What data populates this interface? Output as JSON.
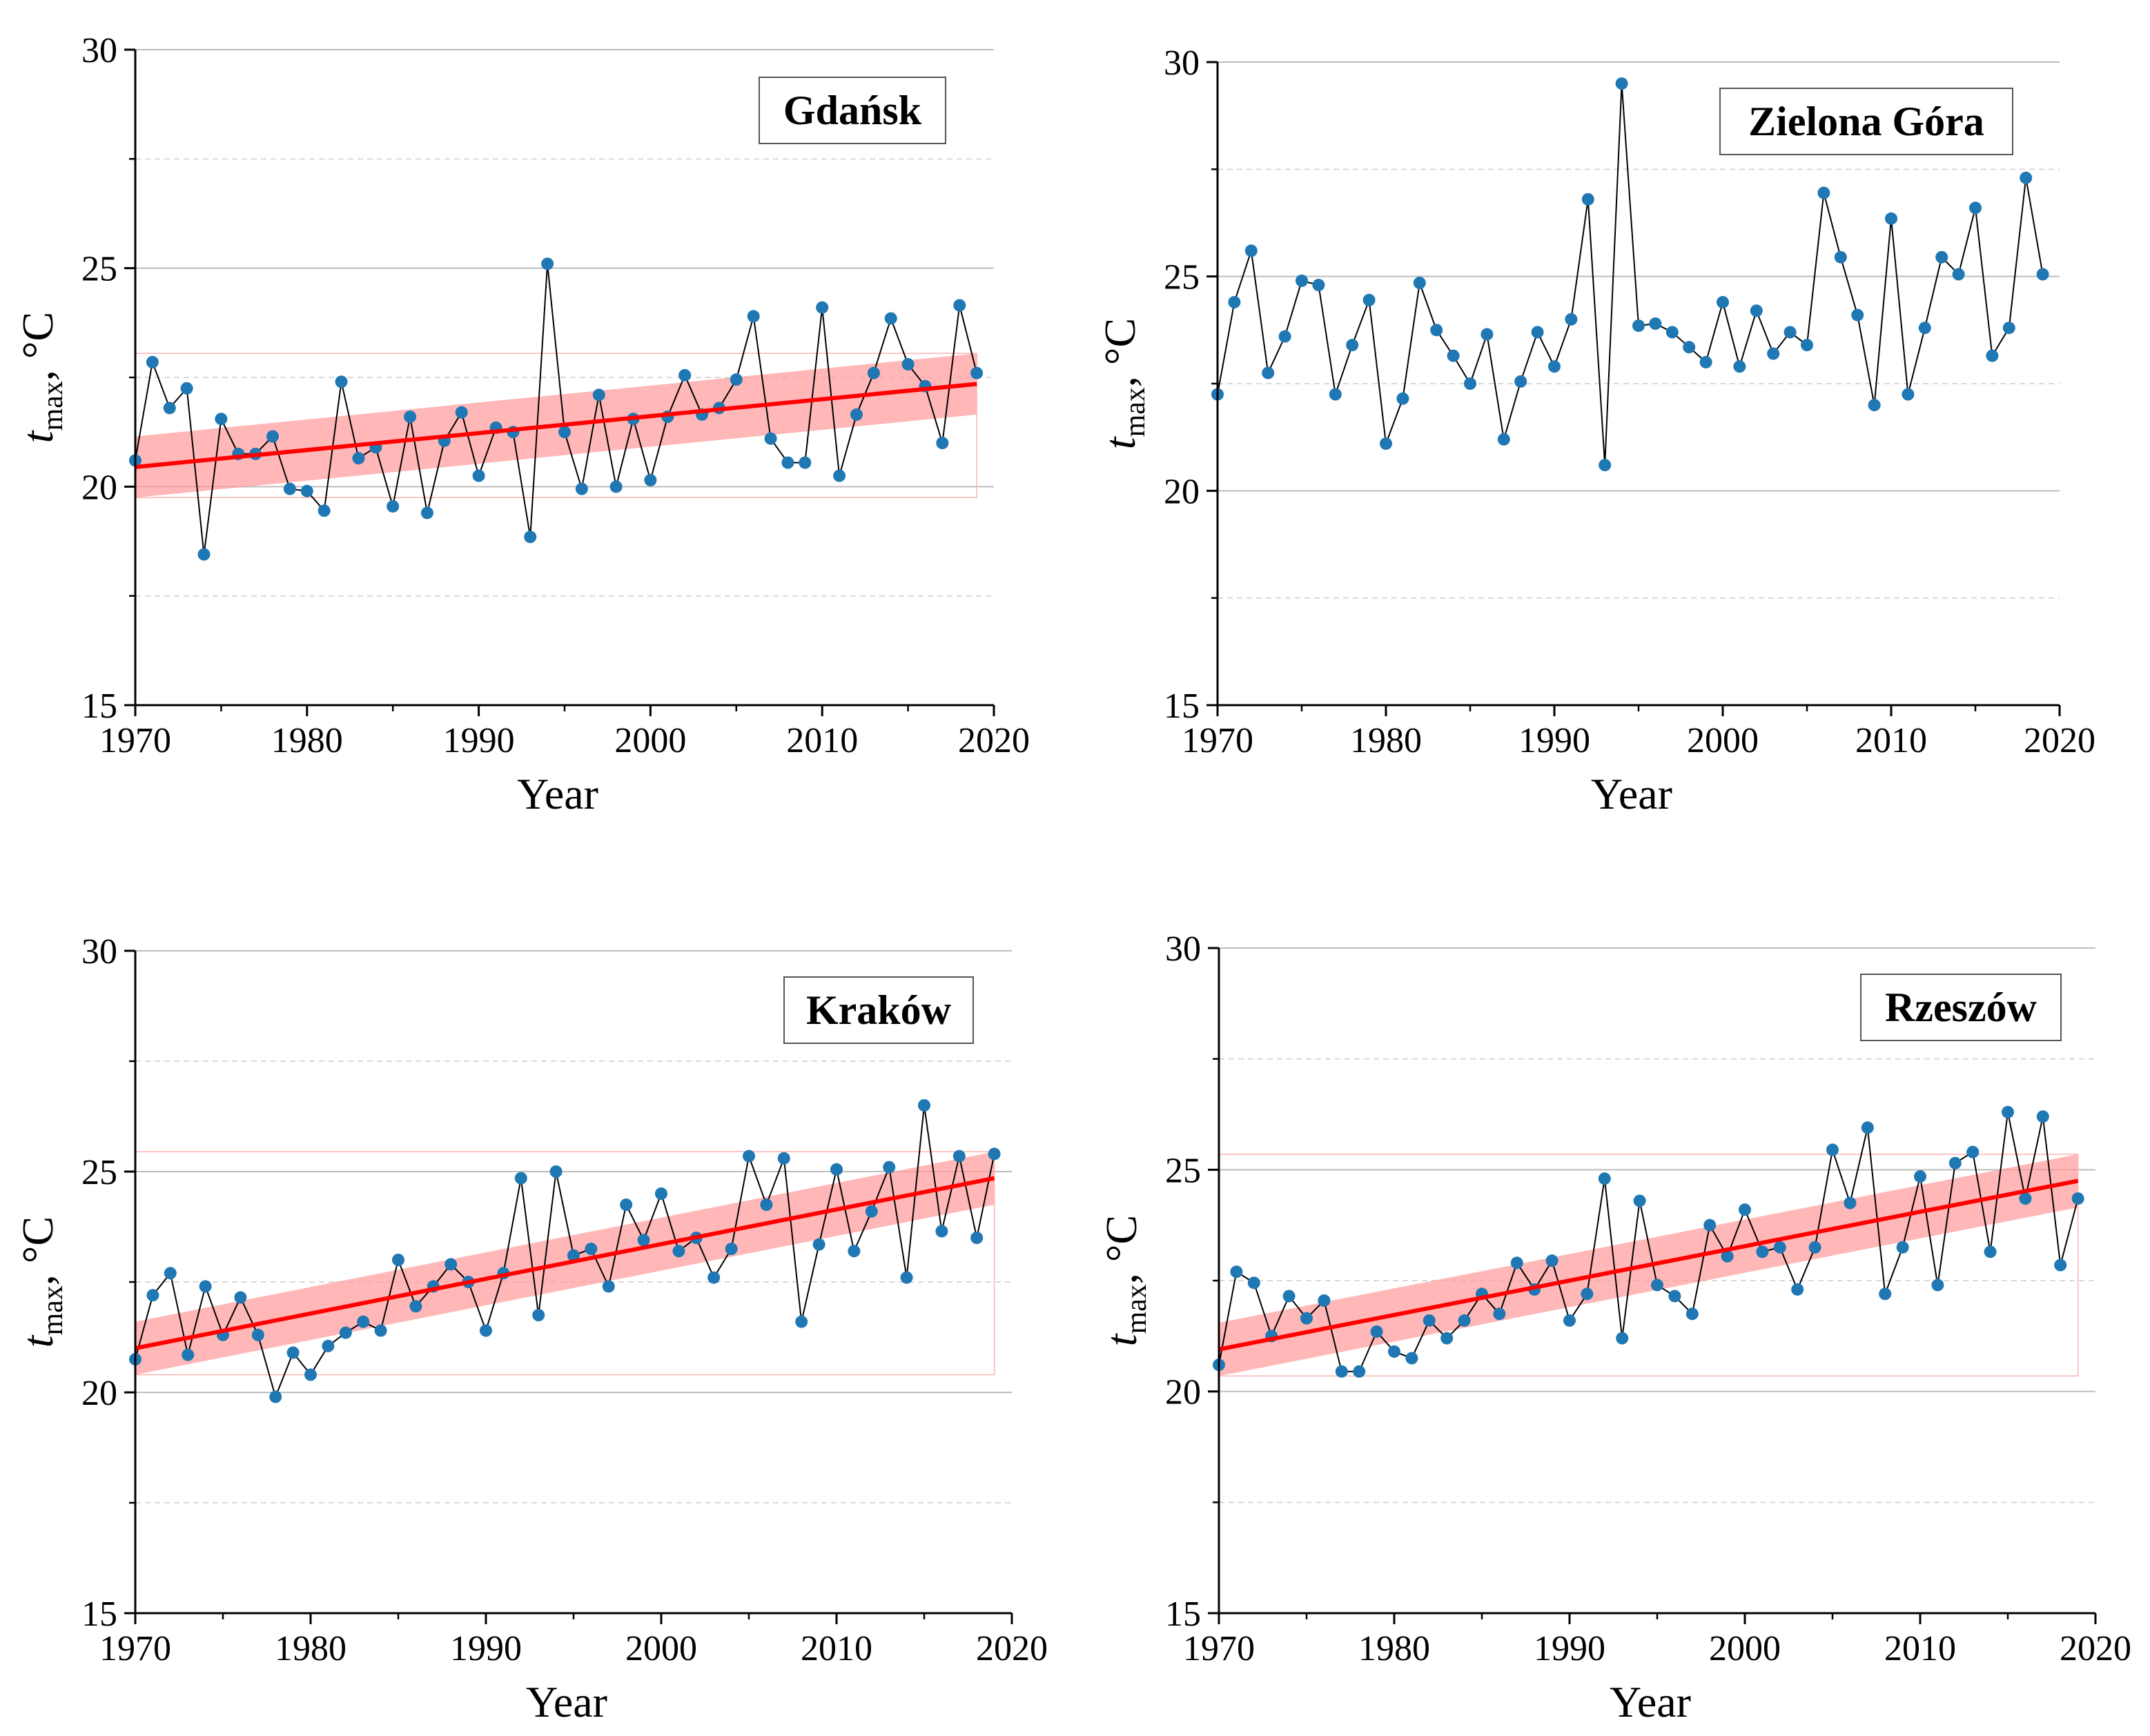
{
  "chart_data": [
    {
      "type": "line",
      "station": "Gdańsk",
      "xlabel": "Year",
      "ylabel": {
        "var": "t",
        "sub": "max",
        "unit": "°C"
      },
      "xlim": [
        1970,
        2020
      ],
      "ylim": [
        15,
        30
      ],
      "x_ticks": [
        "1970",
        "1980",
        "1990",
        "2000",
        "2010",
        "2020"
      ],
      "y_ticks": [
        "15",
        "20",
        "25",
        "30"
      ],
      "has_trend": true,
      "trend": {
        "start": 20.45,
        "end": 22.35,
        "band_start": [
          19.75,
          21.15
        ],
        "band_end": [
          21.65,
          23.05
        ]
      },
      "years": [
        1970,
        1971,
        1972,
        1973,
        1974,
        1975,
        1976,
        1977,
        1978,
        1979,
        1980,
        1981,
        1982,
        1983,
        1984,
        1985,
        1986,
        1987,
        1988,
        1989,
        1990,
        1991,
        1992,
        1993,
        1994,
        1995,
        1996,
        1997,
        1998,
        1999,
        2000,
        2001,
        2002,
        2003,
        2004,
        2005,
        2006,
        2007,
        2008,
        2009,
        2010,
        2011,
        2012,
        2013,
        2014,
        2015,
        2016,
        2017,
        2018,
        2019
      ],
      "values": [
        20.6,
        22.85,
        21.8,
        22.25,
        18.45,
        21.55,
        20.75,
        20.75,
        21.15,
        19.95,
        19.9,
        19.45,
        22.4,
        20.65,
        20.9,
        19.55,
        21.6,
        19.4,
        21.05,
        21.7,
        20.25,
        21.35,
        21.25,
        18.85,
        25.1,
        21.25,
        19.95,
        22.1,
        20.0,
        21.55,
        20.15,
        21.6,
        22.55,
        21.65,
        21.8,
        22.45,
        23.9,
        21.1,
        20.55,
        20.55,
        24.1,
        20.25,
        21.65,
        22.6,
        23.85,
        22.8,
        22.3,
        21.0,
        24.15,
        22.6
      ]
    },
    {
      "type": "line",
      "station": "Zielona Góra",
      "xlabel": "Year",
      "ylabel": {
        "var": "t",
        "sub": "max",
        "unit": "°C"
      },
      "xlim": [
        1970,
        2020
      ],
      "ylim": [
        15,
        30
      ],
      "x_ticks": [
        "1970",
        "1980",
        "1990",
        "2000",
        "2010",
        "2020"
      ],
      "y_ticks": [
        "15",
        "20",
        "25",
        "30"
      ],
      "has_trend": false,
      "years": [
        1970,
        1971,
        1972,
        1973,
        1974,
        1975,
        1976,
        1977,
        1978,
        1979,
        1980,
        1981,
        1982,
        1983,
        1984,
        1985,
        1986,
        1987,
        1988,
        1989,
        1990,
        1991,
        1992,
        1993,
        1994,
        1995,
        1996,
        1997,
        1998,
        1999,
        2000,
        2001,
        2002,
        2003,
        2004,
        2005,
        2006,
        2007,
        2008,
        2009,
        2010,
        2011,
        2012,
        2013,
        2014,
        2015,
        2016,
        2017,
        2018,
        2019
      ],
      "values": [
        22.25,
        24.4,
        25.6,
        22.75,
        23.6,
        24.9,
        24.8,
        22.25,
        23.4,
        24.45,
        21.1,
        22.15,
        24.85,
        23.75,
        23.15,
        22.5,
        23.65,
        21.2,
        22.55,
        23.7,
        22.9,
        24.0,
        26.8,
        20.6,
        29.5,
        23.85,
        23.9,
        23.7,
        23.35,
        23.0,
        24.4,
        22.9,
        24.2,
        23.2,
        23.7,
        23.4,
        26.95,
        25.45,
        24.1,
        22.0,
        26.35,
        22.25,
        23.8,
        25.45,
        25.05,
        26.6,
        23.15,
        23.8,
        27.3,
        25.05
      ]
    },
    {
      "type": "line",
      "station": "Kraków",
      "xlabel": "Year",
      "ylabel": {
        "var": "t",
        "sub": "max",
        "unit": "°C"
      },
      "xlim": [
        1970,
        2020
      ],
      "ylim": [
        15,
        30
      ],
      "x_ticks": [
        "1970",
        "1980",
        "1990",
        "2000",
        "2010",
        "2020"
      ],
      "y_ticks": [
        "15",
        "20",
        "25",
        "30"
      ],
      "has_trend": true,
      "trend": {
        "start": 21.0,
        "end": 24.85,
        "band_start": [
          20.4,
          21.6
        ],
        "band_end": [
          24.25,
          25.45
        ]
      },
      "years": [
        1970,
        1971,
        1972,
        1973,
        1974,
        1975,
        1976,
        1977,
        1978,
        1979,
        1980,
        1981,
        1982,
        1983,
        1984,
        1985,
        1986,
        1987,
        1988,
        1989,
        1990,
        1991,
        1992,
        1993,
        1994,
        1995,
        1996,
        1997,
        1998,
        1999,
        2000,
        2001,
        2002,
        2003,
        2004,
        2005,
        2006,
        2007,
        2008,
        2009,
        2010,
        2011,
        2012,
        2013,
        2014,
        2015,
        2016,
        2017,
        2018,
        2019
      ],
      "values": [
        20.75,
        22.2,
        22.7,
        20.85,
        22.4,
        21.3,
        22.15,
        21.3,
        19.9,
        20.9,
        20.4,
        21.05,
        21.35,
        21.6,
        21.4,
        23.0,
        21.95,
        22.4,
        22.9,
        22.5,
        21.4,
        22.7,
        24.85,
        21.75,
        25.0,
        23.1,
        23.25,
        22.4,
        24.25,
        23.45,
        24.5,
        23.2,
        23.5,
        22.6,
        23.25,
        25.35,
        24.25,
        25.3,
        21.6,
        23.35,
        25.05,
        23.2,
        24.1,
        25.1,
        22.6,
        26.5,
        23.65,
        25.35,
        23.5,
        25.4
      ]
    },
    {
      "type": "line",
      "station": "Rzeszów",
      "xlabel": "Year",
      "ylabel": {
        "var": "t",
        "sub": "max",
        "unit": "°C"
      },
      "xlim": [
        1970,
        2020
      ],
      "ylim": [
        15,
        30
      ],
      "x_ticks": [
        "1970",
        "1980",
        "1990",
        "2000",
        "2010",
        "2020"
      ],
      "y_ticks": [
        "15",
        "20",
        "25",
        "30"
      ],
      "has_trend": true,
      "trend": {
        "start": 20.95,
        "end": 24.75,
        "band_start": [
          20.35,
          21.55
        ],
        "band_end": [
          24.15,
          25.35
        ]
      },
      "years": [
        1970,
        1971,
        1972,
        1973,
        1974,
        1975,
        1976,
        1977,
        1978,
        1979,
        1980,
        1981,
        1982,
        1983,
        1984,
        1985,
        1986,
        1987,
        1988,
        1989,
        1990,
        1991,
        1992,
        1993,
        1994,
        1995,
        1996,
        1997,
        1998,
        1999,
        2000,
        2001,
        2002,
        2003,
        2004,
        2005,
        2006,
        2007,
        2008,
        2009,
        2010,
        2011,
        2012,
        2013,
        2014,
        2015,
        2016,
        2017,
        2018,
        2019
      ],
      "values": [
        20.6,
        22.7,
        22.45,
        21.25,
        22.15,
        21.65,
        22.05,
        20.45,
        20.45,
        21.35,
        20.9,
        20.75,
        21.6,
        21.2,
        21.6,
        22.2,
        21.75,
        22.9,
        22.3,
        22.95,
        21.6,
        22.2,
        24.8,
        21.2,
        24.3,
        22.4,
        22.15,
        21.75,
        23.75,
        23.05,
        24.1,
        23.15,
        23.25,
        22.3,
        23.25,
        25.45,
        24.25,
        25.95,
        22.2,
        23.25,
        24.85,
        22.4,
        25.15,
        25.4,
        23.15,
        26.3,
        24.35,
        26.2,
        22.85,
        24.35
      ]
    }
  ],
  "colors": {
    "marker": "#1f77b4",
    "line": "#000000",
    "trend": "#ff0000",
    "band": "#ff9999",
    "grid": "#c8c8c8"
  }
}
